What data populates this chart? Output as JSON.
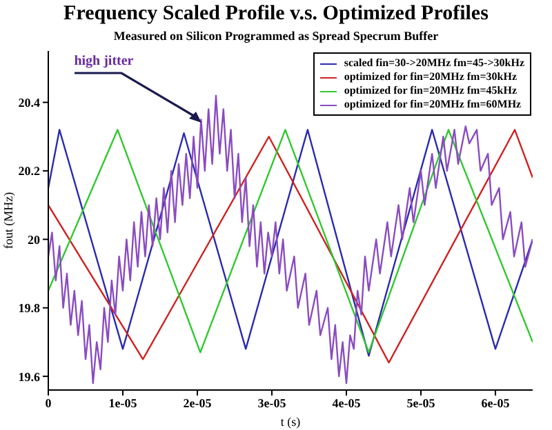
{
  "chart_data": {
    "type": "line",
    "title": "Frequency Scaled Profile v.s. Optimized Profiles",
    "subtitle": "Measured on Silicon Programmed as Spread Specrum Buffer",
    "xlabel": "t (s)",
    "ylabel": "fout (MHz)",
    "xlim": [
      0,
      6.5e-05
    ],
    "xticks": [
      0,
      {
        "value": 1e-05,
        "label": "1e-05"
      },
      {
        "value": 2e-05,
        "label": "2e-05"
      },
      {
        "value": 3e-05,
        "label": "3e-05"
      },
      {
        "value": 4e-05,
        "label": "4e-05"
      },
      {
        "value": 5e-05,
        "label": "5e-05"
      },
      {
        "value": 6e-05,
        "label": "6e-05"
      }
    ],
    "ylim": [
      19.56,
      20.55
    ],
    "yticks": [
      19.6,
      19.8,
      20,
      20.2,
      20.4
    ],
    "grid": false,
    "legend": "top right",
    "marker": "none",
    "line_style": "solid",
    "annotations": [
      {
        "text": "high jitter",
        "x": 2.05e-05,
        "y": 20.34
      }
    ],
    "series": [
      {
        "name": "scaled fin=30->20MHz fm=45->30kHz",
        "color": "#2a2ab0",
        "x": [
          0,
          1.5e-06,
          1e-05,
          1.82e-05,
          2.65e-05,
          3.48e-05,
          4.3e-05,
          5.15e-05,
          6e-05,
          6.5e-05
        ],
        "values": [
          20.15,
          20.32,
          19.68,
          20.31,
          19.68,
          20.32,
          19.66,
          20.32,
          19.68,
          20.0
        ]
      },
      {
        "name": "optimized for fin=20MHz fm=30kHz",
        "color": "#d02020",
        "x": [
          0,
          1.27e-05,
          2.96e-05,
          4.57e-05,
          6.26e-05,
          6.5e-05
        ],
        "values": [
          20.1,
          19.65,
          20.3,
          19.64,
          20.32,
          20.18
        ]
      },
      {
        "name": "optimized for fin=20MHz fm=45kHz",
        "color": "#30c830",
        "x": [
          0,
          9.3e-06,
          2.04e-05,
          3.18e-05,
          4.3e-05,
          5.37e-05,
          6.5e-05
        ],
        "values": [
          19.85,
          20.32,
          19.67,
          20.32,
          19.67,
          20.32,
          19.7
        ]
      },
      {
        "name": "optimized for fin=20MHz fm=60MHz",
        "color": "#8a4cc0",
        "x": [
          0,
          5e-07,
          1e-06,
          1.5e-06,
          2e-06,
          2.5e-06,
          3e-06,
          3.5e-06,
          4e-06,
          4.5e-06,
          5e-06,
          5.5e-06,
          6e-06,
          6.5e-06,
          7e-06,
          7.5e-06,
          8e-06,
          8.5e-06,
          9e-06,
          9.5e-06,
          1e-05,
          1.05e-05,
          1.1e-05,
          1.15e-05,
          1.2e-05,
          1.25e-05,
          1.3e-05,
          1.35e-05,
          1.4e-05,
          1.45e-05,
          1.5e-05,
          1.55e-05,
          1.6e-05,
          1.65e-05,
          1.7e-05,
          1.75e-05,
          1.8e-05,
          1.85e-05,
          1.9e-05,
          1.95e-05,
          2e-05,
          2.05e-05,
          2.1e-05,
          2.15e-05,
          2.2e-05,
          2.25e-05,
          2.3e-05,
          2.35e-05,
          2.4e-05,
          2.45e-05,
          2.5e-05,
          2.55e-05,
          2.6e-05,
          2.65e-05,
          2.7e-05,
          2.75e-05,
          2.8e-05,
          2.85e-05,
          2.9e-05,
          2.95e-05,
          3e-05,
          3.05e-05,
          3.1e-05,
          3.15e-05,
          3.2e-05,
          3.3e-05,
          3.35e-05,
          3.45e-05,
          3.5e-05,
          3.6e-05,
          3.65e-05,
          3.75e-05,
          3.8e-05,
          3.85e-05,
          3.9e-05,
          3.95e-05,
          4e-05,
          4.05e-05,
          4.1e-05,
          4.15e-05,
          4.2e-05,
          4.25e-05,
          4.3e-05,
          4.4e-05,
          4.45e-05,
          4.55e-05,
          4.6e-05,
          4.7e-05,
          4.75e-05,
          4.85e-05,
          4.9e-05,
          5e-05,
          5.05e-05,
          5.15e-05,
          5.2e-05,
          5.3e-05,
          5.35e-05,
          5.45e-05,
          5.5e-05,
          5.6e-05,
          5.65e-05,
          5.75e-05,
          5.8e-05,
          5.9e-05,
          5.95e-05,
          6.05e-05,
          6.1e-05,
          6.2e-05,
          6.25e-05,
          6.35e-05,
          6.4e-05,
          6.5e-05
        ],
        "values": [
          19.95,
          20.02,
          19.88,
          19.98,
          19.8,
          19.9,
          19.75,
          19.85,
          19.72,
          19.82,
          19.65,
          19.75,
          19.58,
          19.7,
          19.62,
          19.8,
          19.7,
          19.88,
          19.78,
          19.95,
          19.85,
          20.0,
          19.88,
          20.05,
          19.92,
          20.08,
          19.95,
          20.1,
          19.98,
          20.12,
          20.0,
          20.15,
          20.02,
          20.2,
          20.05,
          20.22,
          20.1,
          20.25,
          20.12,
          20.3,
          20.15,
          20.35,
          20.2,
          20.38,
          20.22,
          20.42,
          20.25,
          20.38,
          20.2,
          20.32,
          20.12,
          20.25,
          20.05,
          20.18,
          19.98,
          20.1,
          19.92,
          20.05,
          19.9,
          20.02,
          19.95,
          20.05,
          19.9,
          20.0,
          19.85,
          19.95,
          19.8,
          19.9,
          19.75,
          19.85,
          19.72,
          19.8,
          19.65,
          19.75,
          19.6,
          19.7,
          19.58,
          19.72,
          19.68,
          19.85,
          19.78,
          19.95,
          19.85,
          20.0,
          19.9,
          20.05,
          19.95,
          20.1,
          20.0,
          20.15,
          20.05,
          20.2,
          20.1,
          20.25,
          20.15,
          20.3,
          20.2,
          20.32,
          20.22,
          20.33,
          20.28,
          20.32,
          20.2,
          20.25,
          20.1,
          20.15,
          20.0,
          20.08,
          19.95,
          20.05,
          19.92,
          20.0
        ]
      }
    ]
  }
}
